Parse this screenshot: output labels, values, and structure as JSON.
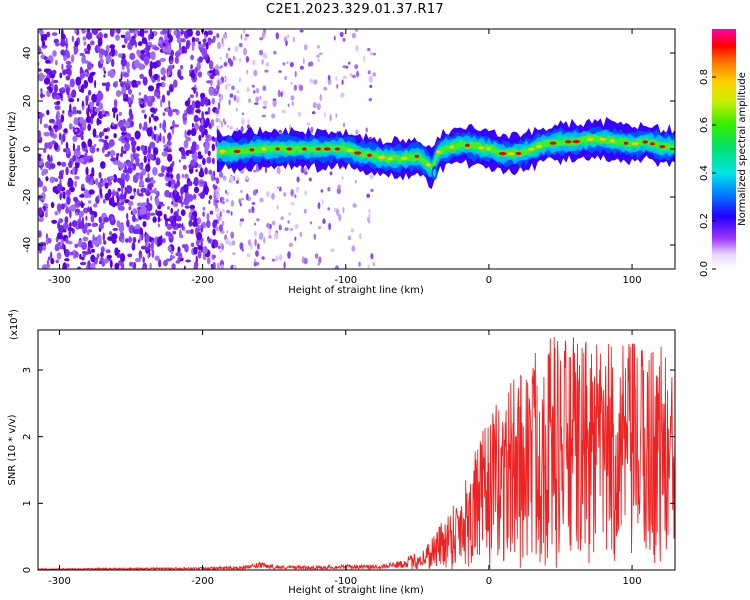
{
  "title": "C2E1.2023.329.01.37.R17",
  "colors": {
    "snr_line": "#ee2222",
    "ridge_low": "#5500ee",
    "ridge_high": "#dd0000"
  },
  "chart_data": [
    {
      "type": "heatmap",
      "name": "spectrogram",
      "xlabel": "Height of straight line (km)",
      "ylabel": "Frequency (Hz)",
      "xlim": [
        -315,
        130
      ],
      "ylim": [
        -50,
        50
      ],
      "xticks": [
        -300,
        -200,
        -100,
        0,
        100
      ],
      "xtick_labels": [
        "-300",
        "-200",
        "-100",
        "0",
        "100"
      ],
      "yticks": [
        -40,
        -20,
        0,
        20,
        40
      ],
      "ytick_labels": [
        "-40",
        "-20",
        "0",
        "20",
        "40"
      ],
      "colorbar": {
        "label": "Normalized spectral amplitude",
        "range": [
          0,
          1
        ],
        "ticks": [
          0.0,
          0.2,
          0.4,
          0.6,
          0.8
        ],
        "tick_labels": [
          "0.0",
          "0.2",
          "0.4",
          "0.6",
          "0.8"
        ]
      },
      "ridge": {
        "x": [
          -190,
          -175,
          -160,
          -145,
          -130,
          -115,
          -100,
          -90,
          -80,
          -70,
          -60,
          -50,
          -45,
          -40,
          -35,
          -30,
          -20,
          -10,
          0,
          10,
          20,
          30,
          40,
          50,
          60,
          70,
          80,
          90,
          100,
          110,
          120,
          130
        ],
        "frequency": [
          -1,
          -1,
          0,
          0,
          0,
          0,
          0,
          -2,
          -3,
          -4,
          -4,
          -3,
          -5,
          -8,
          -1,
          0,
          2,
          1,
          0,
          -2,
          -2,
          0,
          2,
          3,
          3,
          4,
          4,
          3,
          2,
          3,
          1,
          1
        ]
      },
      "noise_region_x": [
        -315,
        -190
      ]
    },
    {
      "type": "line",
      "name": "snr",
      "xlabel": "Height of straight line (km)",
      "ylabel": "SNR (10 * v/v)",
      "scale_label": "(x10",
      "scale_exponent": "4",
      "scale_close": ")",
      "xlim": [
        -315,
        130
      ],
      "ylim": [
        0,
        3.6
      ],
      "units": "x10^4",
      "xticks": [
        -300,
        -200,
        -100,
        0,
        100
      ],
      "xtick_labels": [
        "-300",
        "-200",
        "-100",
        "0",
        "100"
      ],
      "yticks": [
        0,
        1,
        2,
        3
      ],
      "ytick_labels": [
        "0",
        "1",
        "2",
        "3"
      ],
      "envelope": {
        "x": [
          -315,
          -200,
          -170,
          -160,
          -150,
          -120,
          -100,
          -80,
          -60,
          -45,
          -30,
          -20,
          -10,
          0,
          10,
          20,
          40,
          60,
          80,
          100,
          120,
          130
        ],
        "max": [
          0.02,
          0.04,
          0.06,
          0.12,
          0.07,
          0.06,
          0.08,
          0.08,
          0.15,
          0.35,
          0.85,
          1.25,
          1.8,
          2.3,
          2.7,
          3.0,
          3.6,
          3.5,
          3.4,
          3.4,
          3.5,
          2.8
        ]
      }
    }
  ]
}
